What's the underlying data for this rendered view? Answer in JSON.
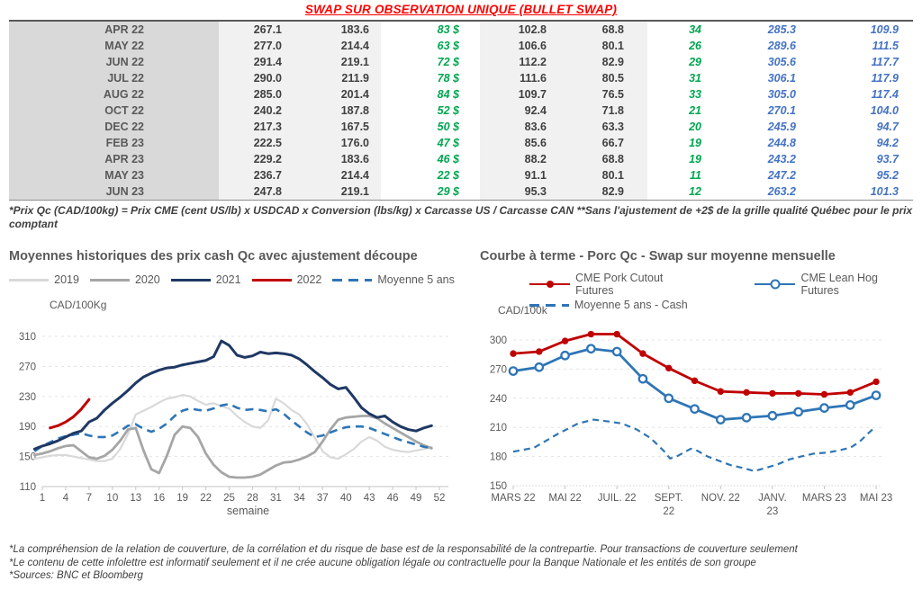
{
  "title": "SWAP SUR OBSERVATION UNIQUE (BULLET SWAP)",
  "table": {
    "rows": [
      [
        "APR 22",
        "267.1",
        "183.6",
        "83 $",
        "102.8",
        "68.8",
        "34",
        "285.3",
        "109.9"
      ],
      [
        "MAY 22",
        "277.0",
        "214.4",
        "63 $",
        "106.6",
        "80.1",
        "26",
        "289.6",
        "111.5"
      ],
      [
        "JUN 22",
        "291.4",
        "219.1",
        "72 $",
        "112.2",
        "82.9",
        "29",
        "305.6",
        "117.7"
      ],
      [
        "JUL 22",
        "290.0",
        "211.9",
        "78 $",
        "111.6",
        "80.5",
        "31",
        "306.1",
        "117.9"
      ],
      [
        "AUG 22",
        "285.0",
        "201.4",
        "84 $",
        "109.7",
        "76.5",
        "33",
        "305.0",
        "117.4"
      ],
      [
        "OCT 22",
        "240.2",
        "187.8",
        "52 $",
        "92.4",
        "71.8",
        "21",
        "270.1",
        "104.0"
      ],
      [
        "DEC 22",
        "217.3",
        "167.5",
        "50 $",
        "83.6",
        "63.3",
        "20",
        "245.9",
        "94.7"
      ],
      [
        "FEB 23",
        "222.5",
        "176.0",
        "47 $",
        "85.6",
        "66.7",
        "19",
        "244.8",
        "94.2"
      ],
      [
        "APR 23",
        "229.2",
        "183.6",
        "46 $",
        "88.2",
        "68.8",
        "19",
        "243.2",
        "93.7"
      ],
      [
        "MAY 23",
        "236.7",
        "214.4",
        "22 $",
        "91.1",
        "80.1",
        "11",
        "247.2",
        "95.2"
      ],
      [
        "JUN 23",
        "247.8",
        "219.1",
        "29 $",
        "95.3",
        "82.9",
        "12",
        "263.2",
        "101.3"
      ]
    ]
  },
  "table_note": "*Prix Qc (CAD/100kg) = Prix CME (cent US/lb) x USDCAD x Conversion (lbs/kg) x Carcasse US / Carcasse CAN **Sans l'ajustement de +2$ de la grille qualité Québec pour le prix comptant",
  "footer": {
    "lines": [
      "*La compréhension de la relation de couverture, de la corrélation et du risque de base est de la responsabilité de la contrepartie. Pour transactions de couverture seulement",
      "*Le contenu de cette infolettre est informatif seulement et il ne crée aucune obligation légale ou contractuelle pour la Banque Nationale et les entités de son groupe",
      "*Sources: BNC et Bloomberg"
    ]
  },
  "colors": {
    "title_red": "#ff0000",
    "green": "#00a650",
    "blue_italic": "#4472c4",
    "navy": "#1f3864",
    "red_series": "#c00000",
    "mid_blue": "#2e75b6",
    "gray_2020": "#a6a6a6",
    "light_gray_2019": "#d9d9d9"
  },
  "chart_data": [
    {
      "type": "line",
      "title": "Moyennes historiques des prix cash Qc avec ajustement découpe",
      "y_unit": "CAD/100Kg",
      "xlabel": "semaine",
      "ylim": [
        110,
        310
      ],
      "yticks": [
        110,
        150,
        190,
        230,
        270,
        310
      ],
      "xticks": [
        1,
        4,
        7,
        10,
        13,
        16,
        19,
        22,
        25,
        28,
        31,
        34,
        37,
        40,
        43,
        46,
        49,
        52
      ],
      "grid": "horizontal-dashed",
      "legend_position": "top",
      "series": [
        {
          "name": "2019",
          "color": "#d9d9d9",
          "style": "solid",
          "width": 2.2,
          "values": [
            147,
            149,
            151,
            152,
            152,
            150,
            148,
            146,
            144,
            144,
            147,
            160,
            180,
            206,
            211,
            216,
            222,
            227,
            229,
            232,
            230,
            224,
            219,
            221,
            217,
            214,
            204,
            196,
            190,
            188,
            198,
            227,
            221,
            212,
            206,
            193,
            175,
            157,
            149,
            147,
            153,
            160,
            170,
            176,
            171,
            163,
            159,
            157,
            156,
            158,
            160,
            163
          ]
        },
        {
          "name": "2020",
          "color": "#a6a6a6",
          "style": "solid",
          "width": 2.8,
          "values": [
            152,
            154,
            157,
            161,
            164,
            165,
            157,
            149,
            147,
            151,
            159,
            171,
            186,
            188,
            158,
            133,
            128,
            151,
            179,
            190,
            188,
            176,
            154,
            139,
            129,
            123,
            122,
            122,
            123,
            126,
            132,
            138,
            142,
            143,
            146,
            150,
            156,
            170,
            186,
            199,
            202,
            203,
            204,
            204,
            201,
            194,
            188,
            182,
            176,
            170,
            165,
            161
          ]
        },
        {
          "name": "Moyenne 5 ans",
          "color": "#2e75b6",
          "style": "dashed",
          "width": 2.6,
          "values": [
            157,
            164,
            169,
            174,
            177,
            179,
            181,
            178,
            176,
            176,
            178,
            184,
            191,
            193,
            187,
            183,
            187,
            194,
            204,
            211,
            214,
            212,
            211,
            214,
            218,
            220,
            215,
            212,
            213,
            212,
            210,
            213,
            207,
            198,
            190,
            182,
            176,
            178,
            182,
            186,
            189,
            190,
            190,
            188,
            184,
            180,
            176,
            172,
            169,
            166,
            163,
            161
          ]
        },
        {
          "name": "2021",
          "color": "#1f3864",
          "style": "solid",
          "width": 3,
          "values": [
            160,
            164,
            167,
            171,
            176,
            181,
            184,
            196,
            201,
            212,
            221,
            229,
            238,
            248,
            256,
            261,
            265,
            268,
            269,
            272,
            274,
            276,
            278,
            283,
            304,
            298,
            285,
            282,
            284,
            289,
            287,
            288,
            287,
            285,
            280,
            272,
            263,
            255,
            246,
            240,
            242,
            229,
            215,
            207,
            202,
            204,
            196,
            190,
            186,
            184,
            188,
            191
          ]
        },
        {
          "name": "2022",
          "color": "#c00000",
          "style": "solid",
          "width": 3,
          "x": [
            2,
            3,
            4,
            5,
            6,
            7
          ],
          "values": [
            188,
            191,
            196,
            203,
            213,
            226
          ]
        }
      ],
      "legend_order": [
        "2019",
        "2020",
        "2021",
        "2022",
        "Moyenne 5 ans"
      ]
    },
    {
      "type": "line",
      "title": "Courbe à terme - Porc Qc - Swap sur moyenne mensuelle",
      "y_unit": "CAD/100k",
      "ylim": [
        150,
        300
      ],
      "yticks": [
        150,
        180,
        210,
        240,
        270,
        300
      ],
      "xtick_positions": [
        0,
        2,
        4,
        6,
        8,
        10,
        12,
        14
      ],
      "xtick_labels": [
        "MARS 22",
        "MAI 22",
        "JUIL. 22",
        "SEPT.\n22",
        "NOV. 22",
        "JANV.\n23",
        "MARS 23",
        "MAI 23"
      ],
      "grid": "horizontal-dashed",
      "legend_position": "top",
      "series": [
        {
          "name": "CME Pork Cutout Futures",
          "color": "#c00000",
          "style": "solid",
          "width": 2.8,
          "marker": "circle-filled",
          "values": [
            286,
            288,
            299,
            306,
            306,
            286,
            271,
            258,
            247,
            246,
            245,
            245,
            244,
            246,
            257
          ]
        },
        {
          "name": "CME Lean Hog Futures",
          "color": "#2e75b6",
          "style": "solid",
          "width": 2.8,
          "marker": "circle-open",
          "values": [
            268,
            272,
            284,
            291,
            288,
            260,
            240,
            229,
            218,
            220,
            222,
            226,
            230,
            233,
            243
          ]
        },
        {
          "name": "Moyenne 5 ans - Cash",
          "color": "#2e75b6",
          "style": "dashed",
          "width": 2.2,
          "x": [
            0,
            0.8,
            1.7,
            2.5,
            3.1,
            3.7,
            4.2,
            4.75,
            5.3,
            5.8,
            6.05,
            6.3,
            6.85,
            7.1,
            7.5,
            8,
            8.4,
            8.9,
            9.3,
            9.7,
            10.2,
            10.65,
            11.1,
            11.6,
            12.1,
            12.5,
            13,
            13.35,
            13.7,
            13.95
          ],
          "values": [
            185,
            189,
            203,
            214,
            218,
            216,
            214,
            208,
            199,
            186,
            178,
            180,
            188,
            186,
            180,
            175,
            171,
            168,
            165,
            168,
            172,
            177,
            180,
            183,
            184,
            186,
            189,
            195,
            204,
            210
          ]
        }
      ]
    }
  ]
}
